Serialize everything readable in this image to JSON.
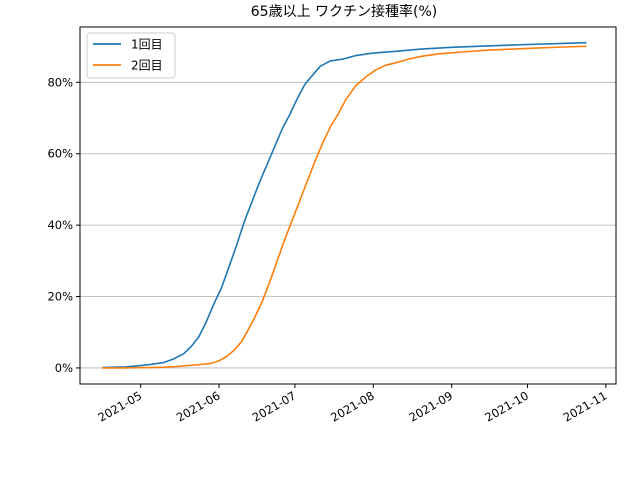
{
  "chart_data": {
    "type": "line",
    "title": "65歳以上 ワクチン接種率(%)",
    "xlabel": "",
    "ylabel": "",
    "x_axis": {
      "type": "date",
      "range": [
        "2021-04-07",
        "2021-11-05"
      ],
      "ticks": [
        {
          "value": "2021-05-01",
          "label": "2021-05"
        },
        {
          "value": "2021-06-01",
          "label": "2021-06"
        },
        {
          "value": "2021-07-01",
          "label": "2021-07"
        },
        {
          "value": "2021-08-01",
          "label": "2021-08"
        },
        {
          "value": "2021-09-01",
          "label": "2021-09"
        },
        {
          "value": "2021-10-01",
          "label": "2021-10"
        },
        {
          "value": "2021-11-01",
          "label": "2021-11"
        }
      ]
    },
    "y_axis": {
      "range": [
        -4.5,
        95.5
      ],
      "ticks": [
        {
          "value": 0,
          "label": "0%"
        },
        {
          "value": 20,
          "label": "20%"
        },
        {
          "value": 40,
          "label": "40%"
        },
        {
          "value": 60,
          "label": "60%"
        },
        {
          "value": 80,
          "label": "80%"
        }
      ],
      "grid": true
    },
    "legend": {
      "placement": "top-left"
    },
    "series": [
      {
        "name": "1回目",
        "color": "#1f77b4",
        "points": [
          [
            "2021-04-16",
            0.1
          ],
          [
            "2021-04-20",
            0.2
          ],
          [
            "2021-04-25",
            0.3
          ],
          [
            "2021-04-30",
            0.6
          ],
          [
            "2021-05-05",
            1.0
          ],
          [
            "2021-05-10",
            1.5
          ],
          [
            "2021-05-14",
            2.5
          ],
          [
            "2021-05-18",
            4.0
          ],
          [
            "2021-05-21",
            6.0
          ],
          [
            "2021-05-24",
            8.7
          ],
          [
            "2021-05-27",
            13.0
          ],
          [
            "2021-05-30",
            18.0
          ],
          [
            "2021-06-02",
            22.5
          ],
          [
            "2021-06-05",
            28.5
          ],
          [
            "2021-06-08",
            34.5
          ],
          [
            "2021-06-11",
            41.0
          ],
          [
            "2021-06-14",
            46.5
          ],
          [
            "2021-06-17",
            52.0
          ],
          [
            "2021-06-20",
            57.0
          ],
          [
            "2021-06-23",
            62.0
          ],
          [
            "2021-06-26",
            67.0
          ],
          [
            "2021-06-29",
            71.0
          ],
          [
            "2021-07-02",
            75.5
          ],
          [
            "2021-07-05",
            79.5
          ],
          [
            "2021-07-08",
            82.0
          ],
          [
            "2021-07-11",
            84.5
          ],
          [
            "2021-07-15",
            86.0
          ],
          [
            "2021-07-20",
            86.5
          ],
          [
            "2021-07-25",
            87.5
          ],
          [
            "2021-08-01",
            88.2
          ],
          [
            "2021-08-10",
            88.7
          ],
          [
            "2021-08-20",
            89.3
          ],
          [
            "2021-09-01",
            89.8
          ],
          [
            "2021-09-15",
            90.2
          ],
          [
            "2021-10-01",
            90.6
          ],
          [
            "2021-10-15",
            90.9
          ],
          [
            "2021-10-24",
            91.1
          ]
        ]
      },
      {
        "name": "2回目",
        "color": "#ff7f0e",
        "points": [
          [
            "2021-04-16",
            0.0
          ],
          [
            "2021-04-25",
            0.0
          ],
          [
            "2021-05-05",
            0.1
          ],
          [
            "2021-05-10",
            0.2
          ],
          [
            "2021-05-15",
            0.4
          ],
          [
            "2021-05-20",
            0.7
          ],
          [
            "2021-05-25",
            1.0
          ],
          [
            "2021-05-29",
            1.3
          ],
          [
            "2021-06-01",
            2.0
          ],
          [
            "2021-06-04",
            3.2
          ],
          [
            "2021-06-07",
            5.0
          ],
          [
            "2021-06-10",
            7.5
          ],
          [
            "2021-06-12",
            10.0
          ],
          [
            "2021-06-15",
            14.0
          ],
          [
            "2021-06-18",
            18.5
          ],
          [
            "2021-06-21",
            24.0
          ],
          [
            "2021-06-24",
            30.0
          ],
          [
            "2021-06-27",
            36.0
          ],
          [
            "2021-06-30",
            41.5
          ],
          [
            "2021-07-03",
            47.0
          ],
          [
            "2021-07-06",
            52.5
          ],
          [
            "2021-07-09",
            58.0
          ],
          [
            "2021-07-12",
            63.0
          ],
          [
            "2021-07-15",
            67.5
          ],
          [
            "2021-07-18",
            71.0
          ],
          [
            "2021-07-21",
            75.0
          ],
          [
            "2021-07-25",
            79.0
          ],
          [
            "2021-07-29",
            81.5
          ],
          [
            "2021-08-02",
            83.5
          ],
          [
            "2021-08-06",
            84.8
          ],
          [
            "2021-08-10",
            85.5
          ],
          [
            "2021-08-15",
            86.5
          ],
          [
            "2021-08-20",
            87.3
          ],
          [
            "2021-08-27",
            88.0
          ],
          [
            "2021-09-05",
            88.5
          ],
          [
            "2021-09-15",
            89.0
          ],
          [
            "2021-10-01",
            89.5
          ],
          [
            "2021-10-15",
            89.9
          ],
          [
            "2021-10-24",
            90.1
          ]
        ]
      }
    ]
  }
}
